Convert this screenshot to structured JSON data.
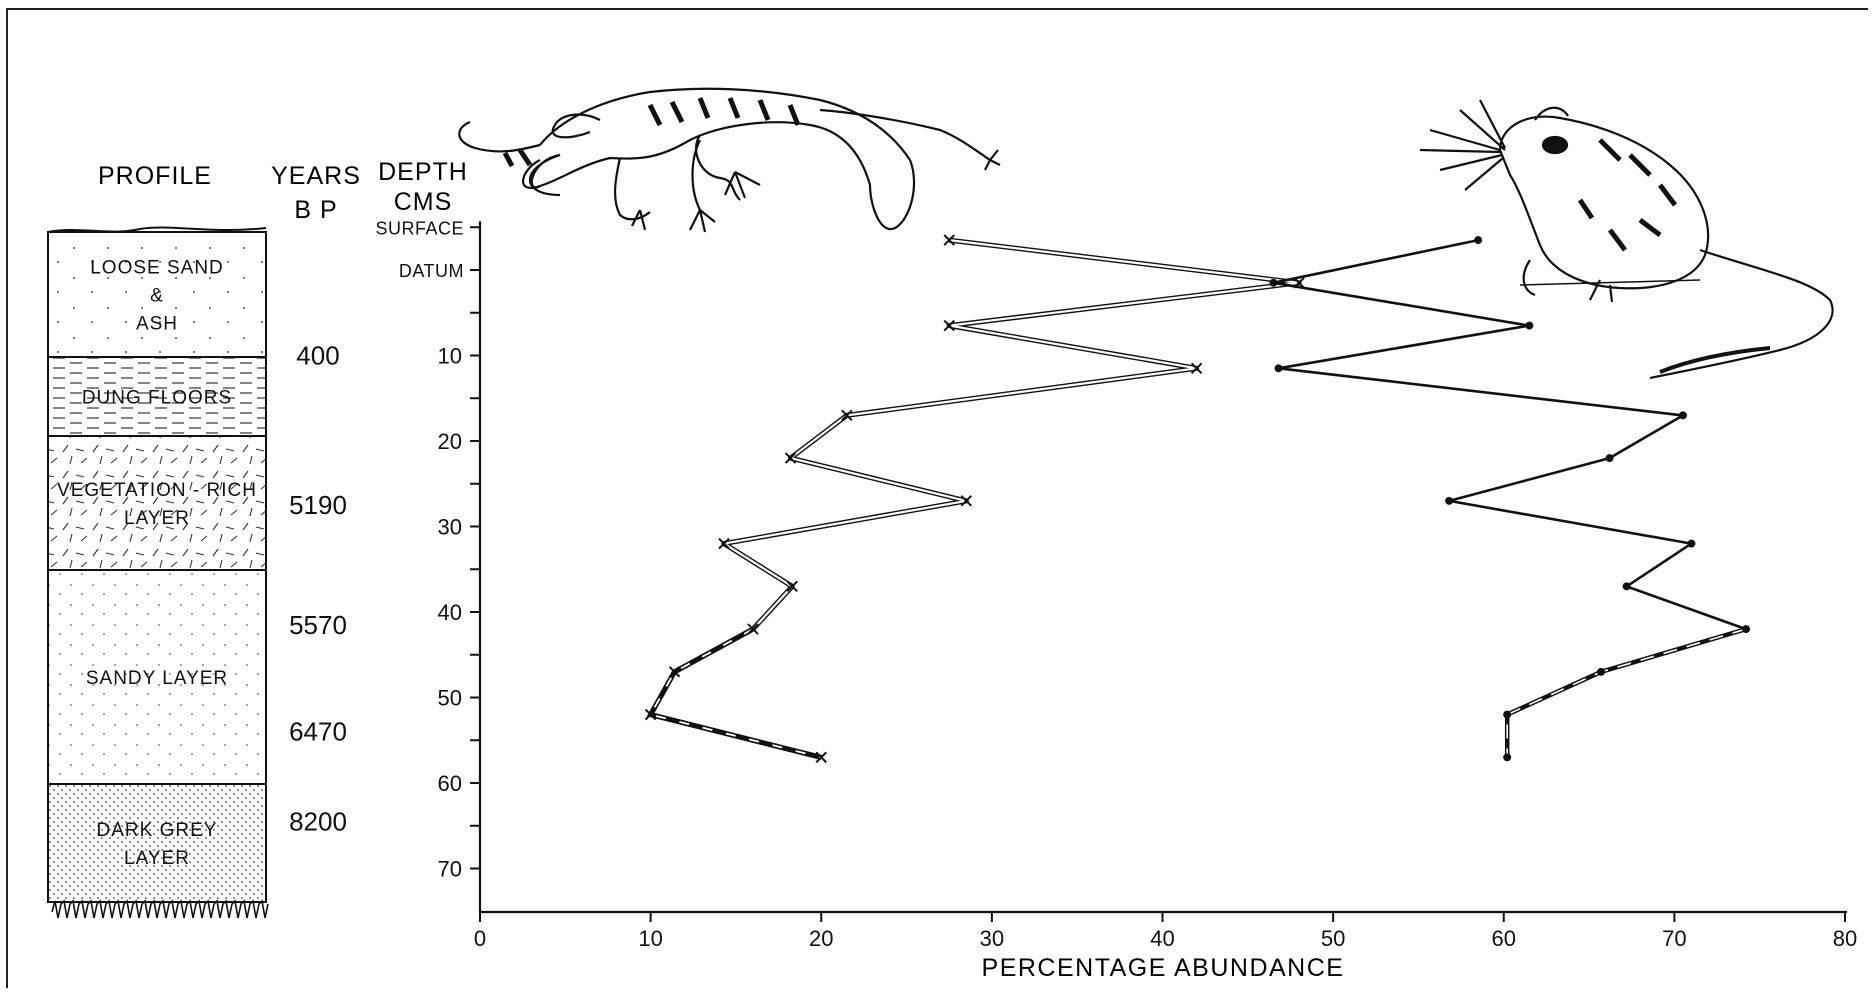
{
  "headers": {
    "profile": "PROFILE",
    "years_line1": "YEARS",
    "years_line2": "B P",
    "depth_line1": "DEPTH",
    "depth_line2": "CMS"
  },
  "profile_layers": [
    {
      "lines": [
        "LOOSE SAND",
        "&",
        "ASH"
      ],
      "pattern": "sparse-dots",
      "top": 0,
      "bottom": 10
    },
    {
      "lines": [
        "DUNG FLOORS"
      ],
      "pattern": "dashes",
      "top": 10,
      "bottom": 19
    },
    {
      "lines": [
        "VEGETATION - RICH",
        "LAYER"
      ],
      "pattern": "slashes",
      "top": 19,
      "bottom": 35
    },
    {
      "lines": [
        "SANDY LAYER"
      ],
      "pattern": "fine-dots",
      "top": 35,
      "bottom": 60
    },
    {
      "lines": [
        "DARK GREY",
        "LAYER"
      ],
      "pattern": "dense-dots",
      "top": 60,
      "bottom": 73
    }
  ],
  "ages": [
    {
      "label": "400",
      "depth": 10
    },
    {
      "label": "5190",
      "depth": 27.5
    },
    {
      "label": "5570",
      "depth": 41.5
    },
    {
      "label": "6470",
      "depth": 54
    },
    {
      "label": "8200",
      "depth": 64.5
    }
  ],
  "chart_data": {
    "type": "line",
    "xlabel": "PERCENTAGE  ABUNDANCE",
    "ylabel": "",
    "xlim": [
      0,
      80
    ],
    "ylim": [
      -5,
      75
    ],
    "x_ticks": [
      0,
      10,
      20,
      30,
      40,
      50,
      60,
      70,
      80
    ],
    "y_ticks": [
      10,
      20,
      30,
      40,
      50,
      60,
      70
    ],
    "y_word_ticks": [
      {
        "label": "SURFACE",
        "depth": -5
      },
      {
        "label": "DATUM",
        "depth": 0
      }
    ],
    "series": [
      {
        "marker": "x",
        "color": "#111111",
        "points": [
          {
            "x": 27.5,
            "y": -3.5
          },
          {
            "x": 48,
            "y": 1.5
          },
          {
            "x": 27.5,
            "y": 6.5
          },
          {
            "x": 42,
            "y": 11.5
          },
          {
            "x": 21.5,
            "y": 17
          },
          {
            "x": 18.2,
            "y": 22
          },
          {
            "x": 28.5,
            "y": 27
          },
          {
            "x": 14.3,
            "y": 32
          },
          {
            "x": 18.3,
            "y": 37
          },
          {
            "x": 16,
            "y": 42
          },
          {
            "x": 11.4,
            "y": 47
          },
          {
            "x": 10,
            "y": 52
          },
          {
            "x": 20,
            "y": 57
          }
        ]
      },
      {
        "marker": "dot",
        "color": "#111111",
        "points": [
          {
            "x": 58.5,
            "y": -3.5
          },
          {
            "x": 46.5,
            "y": 1.5
          },
          {
            "x": 61.5,
            "y": 6.5
          },
          {
            "x": 46.8,
            "y": 11.5
          },
          {
            "x": 70.5,
            "y": 17
          },
          {
            "x": 66.2,
            "y": 22
          },
          {
            "x": 56.8,
            "y": 27
          },
          {
            "x": 71,
            "y": 32
          },
          {
            "x": 67.2,
            "y": 37
          },
          {
            "x": 74.2,
            "y": 42
          },
          {
            "x": 65.7,
            "y": 47
          },
          {
            "x": 60.2,
            "y": 52
          },
          {
            "x": 60.2,
            "y": 57
          }
        ]
      }
    ]
  }
}
